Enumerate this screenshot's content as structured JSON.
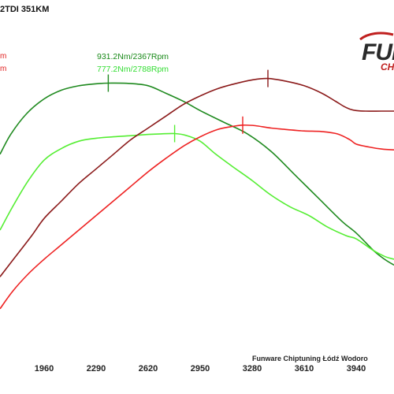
{
  "title": "2TDI 351KM",
  "logo": {
    "main": "FUN",
    "sub": "CH"
  },
  "legend_stubs": [
    "m",
    "m"
  ],
  "peak_labels": {
    "dark_green": "931.2Nm/2367Rpm",
    "light_green": "777.2Nm/2788Rpm"
  },
  "footer": "Funware Chiptuning Łódź Wodoro",
  "colors": {
    "torque_tuned": "#1f8a1f",
    "torque_stock": "#55ee33",
    "power_tuned": "#8b1a1a",
    "power_stock": "#ee2222"
  },
  "chart_data": {
    "type": "line",
    "x_unit": "Rpm",
    "xlim": [
      1680,
      4180
    ],
    "ylim": [
      0,
      100
    ],
    "x_ticks": [
      "1960",
      "2290",
      "2620",
      "2950",
      "3280",
      "3610",
      "3940"
    ],
    "x_tick_values": [
      1960,
      2290,
      2620,
      2950,
      3280,
      3610,
      3940
    ],
    "grid": false,
    "series": [
      {
        "key": "torque_tuned",
        "color": "#1f8a1f",
        "peak_rpm": 2367,
        "points": [
          [
            1680,
            66
          ],
          [
            1750,
            73
          ],
          [
            1850,
            80
          ],
          [
            1960,
            85
          ],
          [
            2070,
            88
          ],
          [
            2180,
            89.5
          ],
          [
            2290,
            90.2
          ],
          [
            2367,
            90.4
          ],
          [
            2500,
            90.3
          ],
          [
            2620,
            89.5
          ],
          [
            2730,
            87
          ],
          [
            2850,
            84
          ],
          [
            2950,
            81
          ],
          [
            3100,
            77
          ],
          [
            3250,
            73
          ],
          [
            3400,
            67
          ],
          [
            3550,
            59
          ],
          [
            3700,
            51
          ],
          [
            3850,
            43
          ],
          [
            3940,
            39
          ],
          [
            4050,
            33
          ],
          [
            4120,
            30
          ],
          [
            4180,
            28
          ]
        ]
      },
      {
        "key": "torque_stock",
        "color": "#55ee33",
        "peak_rpm": 2788,
        "points": [
          [
            1680,
            40
          ],
          [
            1760,
            48
          ],
          [
            1860,
            57
          ],
          [
            1960,
            64
          ],
          [
            2070,
            68
          ],
          [
            2180,
            70.5
          ],
          [
            2290,
            71.5
          ],
          [
            2400,
            72
          ],
          [
            2520,
            72.4
          ],
          [
            2620,
            72.8
          ],
          [
            2700,
            73
          ],
          [
            2788,
            73.1
          ],
          [
            2860,
            72.5
          ],
          [
            2950,
            70.5
          ],
          [
            3050,
            66
          ],
          [
            3150,
            62
          ],
          [
            3280,
            57
          ],
          [
            3400,
            52
          ],
          [
            3520,
            48
          ],
          [
            3640,
            45
          ],
          [
            3760,
            41
          ],
          [
            3880,
            38
          ],
          [
            3940,
            37
          ],
          [
            4050,
            33
          ],
          [
            4120,
            31
          ],
          [
            4180,
            30
          ]
        ]
      },
      {
        "key": "power_tuned",
        "color": "#8b1a1a",
        "peak_rpm": 3380,
        "points": [
          [
            1680,
            24
          ],
          [
            1780,
            31
          ],
          [
            1880,
            38
          ],
          [
            1960,
            44
          ],
          [
            2070,
            50
          ],
          [
            2180,
            56
          ],
          [
            2290,
            61
          ],
          [
            2400,
            66
          ],
          [
            2510,
            71
          ],
          [
            2620,
            75
          ],
          [
            2730,
            79
          ],
          [
            2840,
            83
          ],
          [
            2950,
            86
          ],
          [
            3060,
            88.5
          ],
          [
            3170,
            90.2
          ],
          [
            3280,
            91.5
          ],
          [
            3380,
            92
          ],
          [
            3500,
            91
          ],
          [
            3610,
            89.5
          ],
          [
            3720,
            87
          ],
          [
            3800,
            84.5
          ],
          [
            3860,
            82.5
          ],
          [
            3900,
            81.5
          ],
          [
            3940,
            81
          ],
          [
            4000,
            80.8
          ],
          [
            4100,
            80.8
          ],
          [
            4180,
            80.8
          ]
        ]
      },
      {
        "key": "power_stock",
        "color": "#ee2222",
        "peak_rpm": 3220,
        "points": [
          [
            1680,
            13
          ],
          [
            1760,
            19
          ],
          [
            1860,
            25
          ],
          [
            1960,
            30
          ],
          [
            2070,
            35
          ],
          [
            2180,
            40
          ],
          [
            2290,
            45
          ],
          [
            2400,
            50
          ],
          [
            2510,
            55
          ],
          [
            2620,
            60
          ],
          [
            2730,
            64.5
          ],
          [
            2850,
            69
          ],
          [
            2950,
            72
          ],
          [
            3060,
            74.5
          ],
          [
            3150,
            75.5
          ],
          [
            3220,
            76
          ],
          [
            3300,
            75.8
          ],
          [
            3400,
            75
          ],
          [
            3500,
            74.5
          ],
          [
            3610,
            74
          ],
          [
            3720,
            73.8
          ],
          [
            3820,
            73
          ],
          [
            3900,
            71
          ],
          [
            3940,
            69.5
          ],
          [
            4020,
            68.5
          ],
          [
            4100,
            67.8
          ],
          [
            4180,
            67.5
          ]
        ]
      }
    ]
  }
}
